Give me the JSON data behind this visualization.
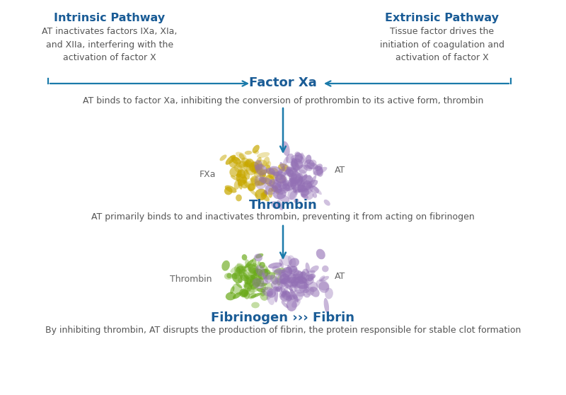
{
  "bg_color": "#ffffff",
  "title_color": "#1a5c96",
  "body_color": "#555555",
  "arrow_color": "#1a5c96",
  "bracket_color": "#1a7aaa",
  "intrinsic_title": "Intrinsic Pathway",
  "intrinsic_body": "AT inactivates factors IXa, XIa,\nand XIIa, interfering with the\nactivation of factor X",
  "extrinsic_title": "Extrinsic Pathway",
  "extrinsic_body": "Tissue factor drives the\ninitiation of coagulation and\nactivation of factor X",
  "factorxa_label": "Factor Xa",
  "factorxa_desc": "AT binds to factor Xa, inhibiting the conversion of prothrombin to its active form, thrombin",
  "thrombin_label": "Thrombin",
  "thrombin_desc": "AT primarily binds to and inactivates thrombin, preventing it from acting on fibrinogen",
  "fibrinogen_label": "Fibrinogen ››› Fibrin",
  "fibrinogen_desc": "By inhibiting thrombin, AT disrupts the production of fibrin, the protein responsible for stable clot formation",
  "fxa_label": "FXa",
  "at_label1": "AT",
  "thrombin_label2": "Thrombin",
  "at_label2": "AT",
  "fig_width": 8.0,
  "fig_height": 5.58,
  "dpi": 100
}
